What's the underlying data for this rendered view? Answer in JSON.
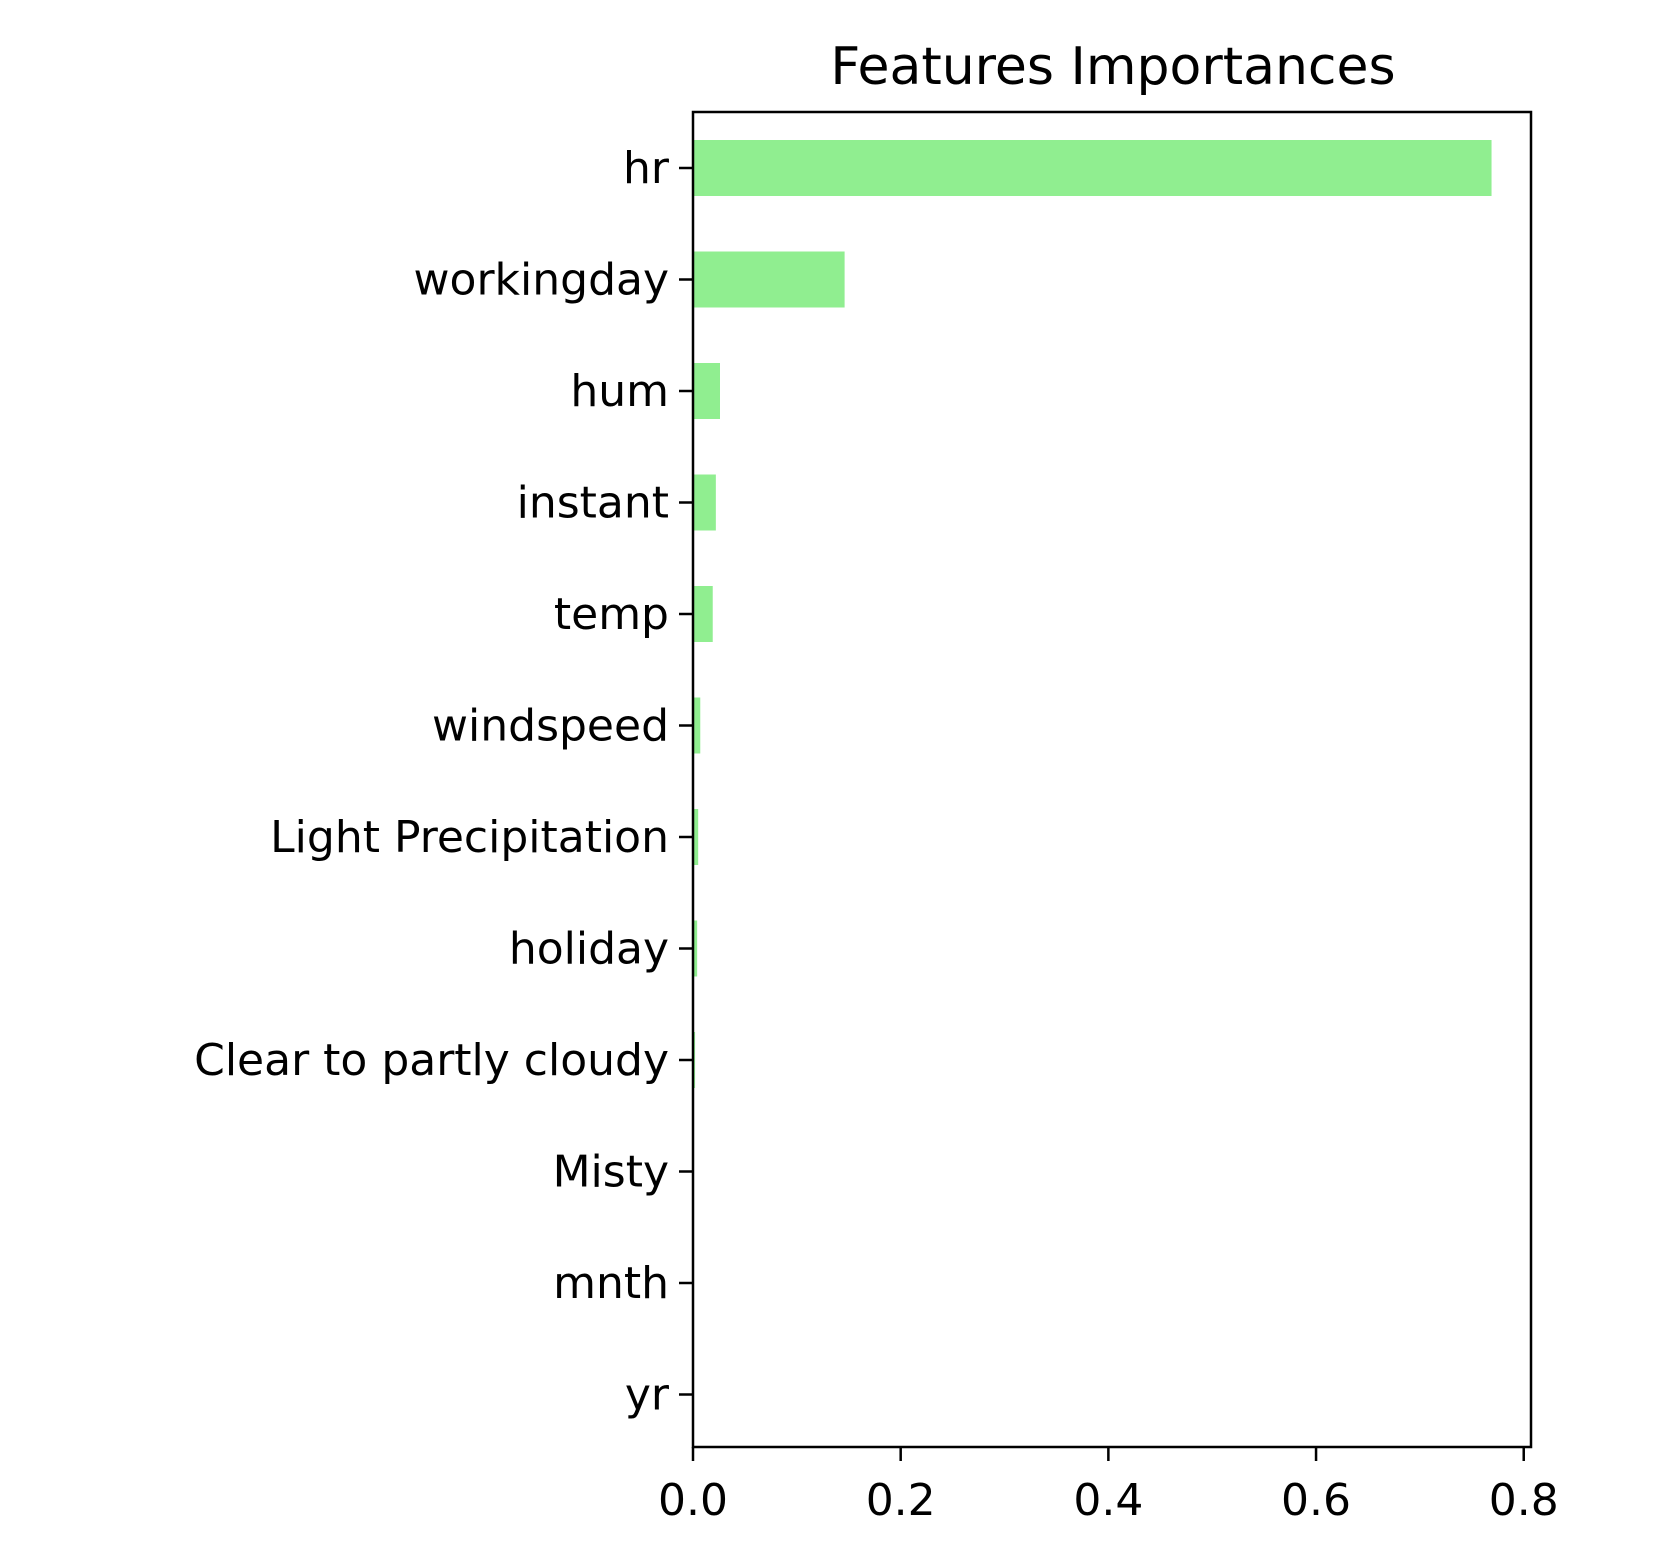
{
  "chart_data": {
    "type": "bar",
    "orientation": "horizontal",
    "title": "Features Importances",
    "xlabel": "",
    "ylabel": "",
    "categories": [
      "hr",
      "workingday",
      "hum",
      "instant",
      "temp",
      "windspeed",
      "Light Precipitation",
      "holiday",
      "Clear to partly cloudy",
      "Misty",
      "mnth",
      "yr"
    ],
    "values": [
      0.769,
      0.146,
      0.026,
      0.022,
      0.019,
      0.007,
      0.005,
      0.004,
      0.002,
      0.0005,
      0.0003,
      0.0001
    ],
    "xlim": [
      0,
      0.807
    ],
    "xticks": [
      "0.0",
      "0.2",
      "0.4",
      "0.6",
      "0.8"
    ],
    "bar_color": "#90ee90",
    "grid": false,
    "legend": "none"
  }
}
